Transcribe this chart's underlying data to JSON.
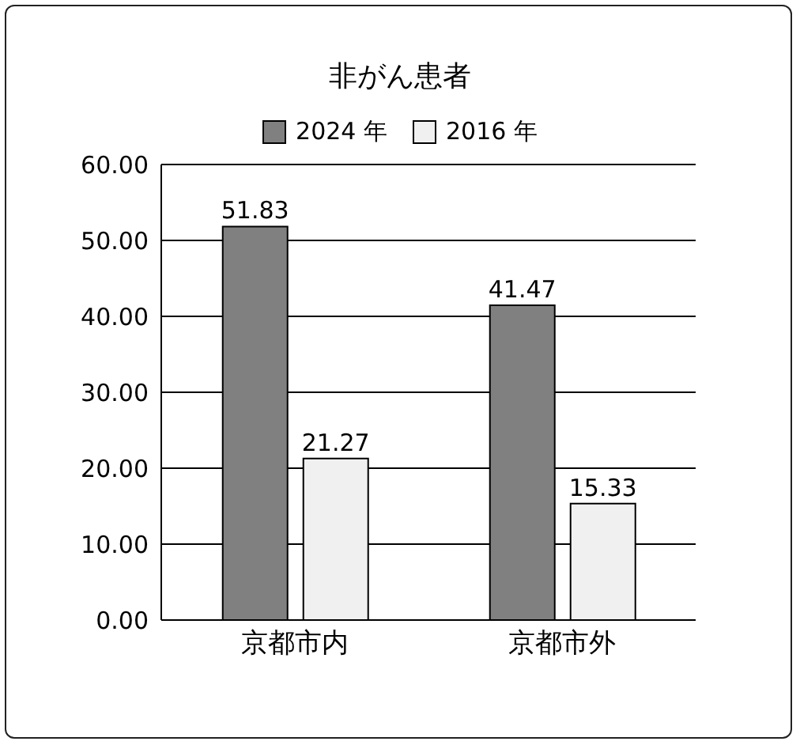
{
  "chart_data": {
    "type": "bar",
    "title": "非がん患者",
    "categories": [
      "京都市内",
      "京都市外"
    ],
    "series": [
      {
        "name": "2024 年",
        "color": "#808080",
        "values": [
          51.83,
          41.47
        ]
      },
      {
        "name": "2016 年",
        "color": "#f0f0f0",
        "values": [
          21.27,
          15.33
        ]
      }
    ],
    "ylim": [
      0,
      60
    ],
    "yticks": [
      {
        "value": 0,
        "label": "0.00"
      },
      {
        "value": 10,
        "label": "10.00"
      },
      {
        "value": 20,
        "label": "20.00"
      },
      {
        "value": 30,
        "label": "30.00"
      },
      {
        "value": 40,
        "label": "40.00"
      },
      {
        "value": 50,
        "label": "50.00"
      },
      {
        "value": 60,
        "label": "60.00"
      }
    ],
    "grid": "y",
    "legend": "top",
    "data_labels": true
  }
}
